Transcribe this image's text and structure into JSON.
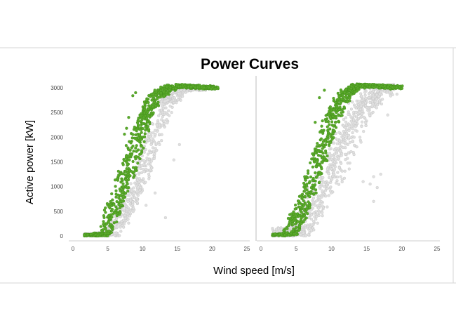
{
  "chart_data": {
    "type": "scatter",
    "title": "Power Curves",
    "xlabel": "Wind speed [m/s]",
    "ylabel": "Active power [kW]",
    "xlim": [
      0,
      25
    ],
    "ylim": [
      0,
      3000
    ],
    "x_ticks": [
      "0",
      "5",
      "10",
      "15",
      "20",
      "25"
    ],
    "y_ticks": [
      "0",
      "500",
      "1000",
      "1500",
      "2000",
      "2500",
      "3000"
    ],
    "grid": false,
    "legend": "none",
    "colors": {
      "green": "#5aaa2a",
      "grey": "#e0e0e0"
    },
    "panels": [
      {
        "id": "left",
        "series": [
          {
            "color": "grey",
            "band": {
              "x": [
                2.0,
                5.5,
                7.5,
                9.5,
                11.5,
                13.5,
                16.0,
                19.0
              ],
              "y": [
                0,
                30,
                500,
                1100,
                1950,
                2700,
                2980,
                3000
              ],
              "x_spread": 2.3,
              "y_spread": 160
            },
            "outliers": [
              [
                8.0,
                260
              ],
              [
                10.5,
                620
              ],
              [
                11.8,
                870
              ],
              [
                13.3,
                370
              ],
              [
                14.5,
                1540
              ],
              [
                15.3,
                1850
              ]
            ]
          },
          {
            "color": "green",
            "band": {
              "x": [
                2.0,
                4.5,
                6.0,
                8.0,
                10.0,
                12.0,
                14.5,
                17.5,
                20.0
              ],
              "y": [
                0,
                30,
                600,
                1400,
                2250,
                2850,
                3040,
                3020,
                3000
              ],
              "x_spread": 2.3,
              "y_spread": 110
            },
            "outliers": [
              [
                7.7,
                2180
              ],
              [
                8.0,
                2400
              ],
              [
                7.4,
                2060
              ],
              [
                8.6,
                2840
              ],
              [
                9.0,
                2900
              ]
            ]
          }
        ]
      },
      {
        "id": "right",
        "series": [
          {
            "color": "grey",
            "band": {
              "x": [
                2.0,
                6.0,
                9.0,
                12.0,
                14.0,
                16.0,
                18.0
              ],
              "y": [
                0,
                100,
                1050,
                1900,
                2500,
                2850,
                2950
              ],
              "x_spread": 3.0,
              "y_spread": 420
            },
            "outliers": [
              [
                14.5,
                1100
              ],
              [
                15.5,
                1050
              ],
              [
                16.0,
                1200
              ],
              [
                16.5,
                980
              ],
              [
                17.0,
                1250
              ],
              [
                18.0,
                2450
              ],
              [
                16.0,
                700
              ]
            ]
          },
          {
            "color": "green",
            "band": {
              "x": [
                2.0,
                4.0,
                6.0,
                8.0,
                10.0,
                12.0,
                14.0,
                17.0,
                19.5
              ],
              "y": [
                0,
                30,
                600,
                1450,
                2350,
                2900,
                3050,
                3030,
                3000
              ],
              "x_spread": 2.3,
              "y_spread": 110
            },
            "outliers": [
              [
                7.7,
                2300
              ],
              [
                8.3,
                2800
              ],
              [
                9.0,
                2950
              ]
            ]
          }
        ]
      }
    ]
  }
}
